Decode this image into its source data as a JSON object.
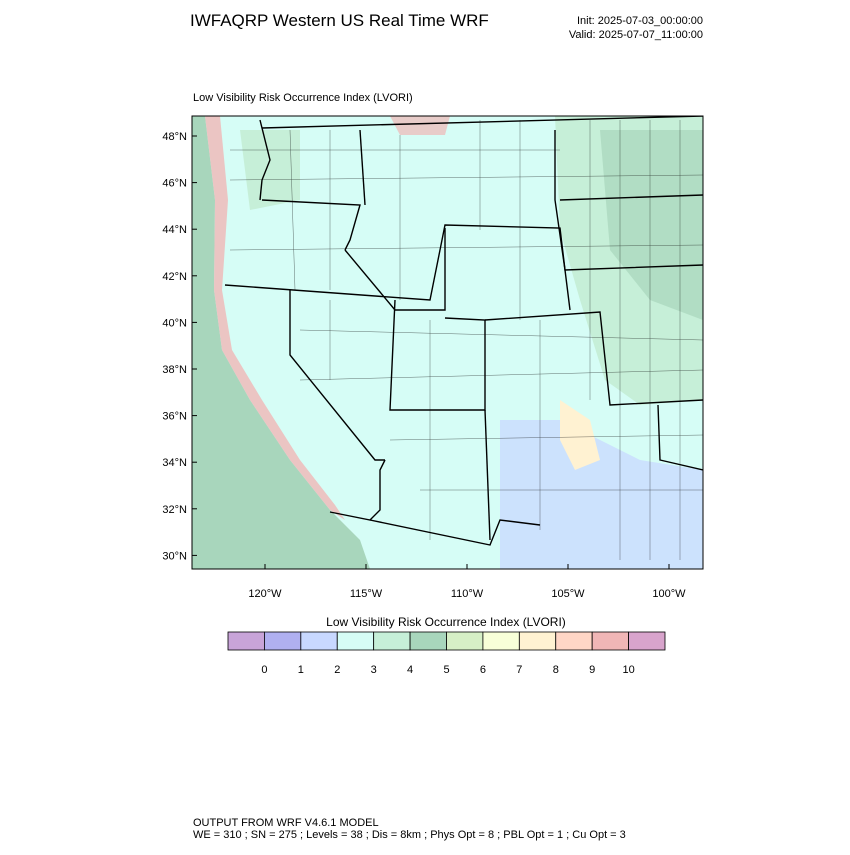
{
  "header": {
    "title": "IWFAQRP Western US Real Time WRF",
    "init": "Init: 2025-07-03_00:00:00",
    "valid": "Valid: 2025-07-07_11:00:00"
  },
  "map": {
    "subtitle": "Low Visibility Risk Occurrence Index   (LVORI)",
    "lat_labels": [
      "48°N",
      "46°N",
      "44°N",
      "42°N",
      "40°N",
      "38°N",
      "36°N",
      "34°N",
      "32°N",
      "30°N"
    ],
    "lon_labels": [
      "120°W",
      "115°W",
      "110°W",
      "105°W",
      "100°W"
    ]
  },
  "colorbar": {
    "title": "Low Visibility Risk Occurrence Index  (LVORI)",
    "labels": [
      "0",
      "1",
      "2",
      "3",
      "4",
      "5",
      "6",
      "7",
      "8",
      "9",
      "10"
    ],
    "colors": [
      "#c8a4d8",
      "#b0b0f0",
      "#c8d8ff",
      "#d6fdf6",
      "#c6efd8",
      "#a8d6bc",
      "#d6efc6",
      "#f8ffd8",
      "#fff2d2",
      "#ffd6c6",
      "#f0b6b6",
      "#d8a4cc"
    ]
  },
  "footer": {
    "line1": "OUTPUT FROM WRF V4.6.1 MODEL",
    "line2": "WE = 310 ; SN = 275 ; Levels = 38 ; Dis = 8km ; Phys Opt = 8 ; PBL Opt = 1 ; Cu Opt = 3"
  }
}
